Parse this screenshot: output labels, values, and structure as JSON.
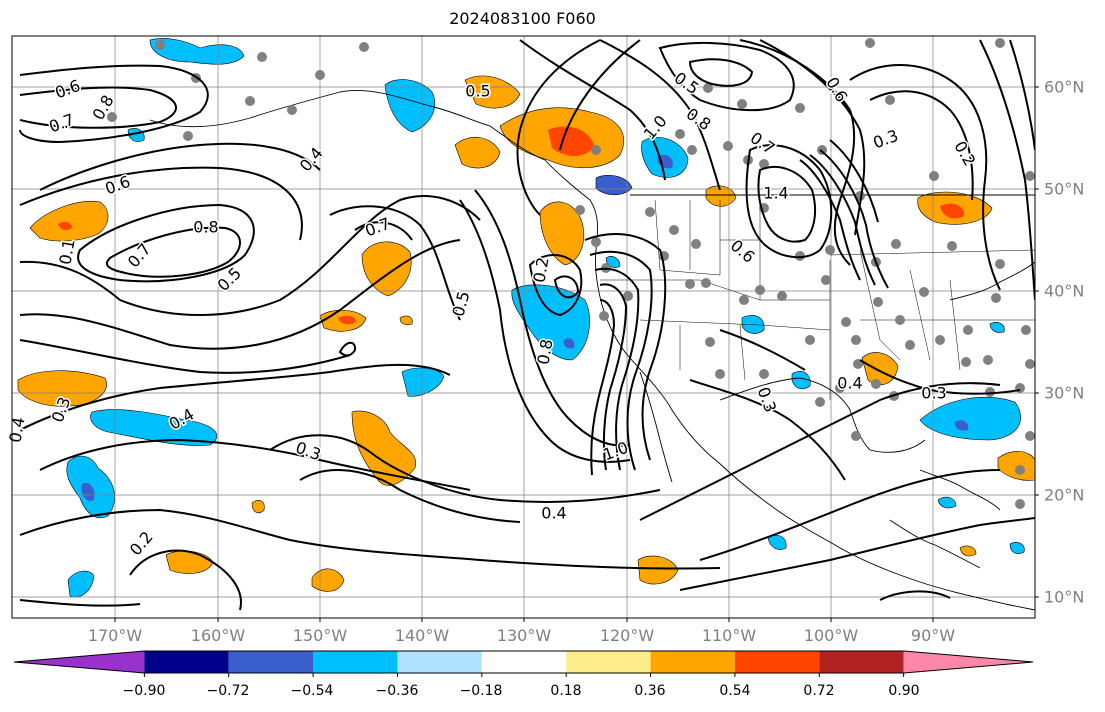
{
  "title": "2024083100 F060",
  "longitude_labels": [
    "170°W",
    "160°W",
    "150°W",
    "140°W",
    "130°W",
    "120°W",
    "110°W",
    "100°W",
    "90°W"
  ],
  "latitude_labels": [
    "60°N",
    "50°N",
    "40°N",
    "30°N",
    "20°N",
    "10°N"
  ],
  "contour_labels": [
    "0.6",
    "0.7",
    "0.8",
    "0.6",
    "0.7",
    "0.8",
    "0.5",
    "0.4",
    "0.7",
    "0.5",
    "0.2",
    "0.8",
    "1.0",
    "0.4",
    "0.3",
    "0.4",
    "0.3",
    "0.2",
    "0.5",
    "1.0",
    "0.8",
    "0.7",
    "0.5",
    "0.6",
    "0.3",
    "0.2",
    "1.4",
    "0.6",
    "0.3",
    "0.4",
    "0.3",
    "0.4",
    "0.1"
  ],
  "colorbar": {
    "ticks": [
      "−0.90",
      "−0.72",
      "−0.54",
      "−0.36",
      "−0.18",
      "0.18",
      "0.36",
      "0.54",
      "0.72",
      "0.90"
    ],
    "colors": [
      "#9932cc",
      "#00008b",
      "#3a5fcd",
      "#00bfff",
      "#b0e2ff",
      "#ffffff",
      "#ffec8b",
      "#ffa500",
      "#ff4500",
      "#b22222",
      "#ff88aa"
    ]
  }
}
